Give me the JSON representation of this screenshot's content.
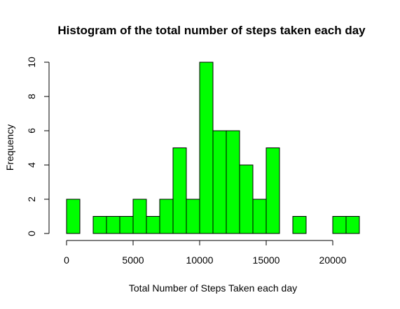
{
  "chart_data": {
    "type": "bar",
    "title": "Histogram of the total number of steps taken each day",
    "xlabel": "Total Number of Steps Taken each day",
    "ylabel": "Frequency",
    "bin_width": 1000,
    "bin_starts": [
      0,
      1000,
      2000,
      3000,
      4000,
      5000,
      6000,
      7000,
      8000,
      9000,
      10000,
      11000,
      12000,
      13000,
      14000,
      15000,
      16000,
      17000,
      18000,
      19000,
      20000,
      21000
    ],
    "values": [
      2,
      0,
      1,
      1,
      1,
      2,
      1,
      2,
      5,
      2,
      10,
      6,
      6,
      4,
      2,
      5,
      0,
      1,
      0,
      0,
      1,
      1
    ],
    "xlim": [
      0,
      22000
    ],
    "ylim": [
      0,
      10
    ],
    "x_ticks": [
      0,
      5000,
      10000,
      15000,
      20000
    ],
    "y_ticks": [
      0,
      2,
      4,
      6,
      8,
      10
    ],
    "bar_color": "#00ff00",
    "grid": false,
    "legend": "none"
  }
}
